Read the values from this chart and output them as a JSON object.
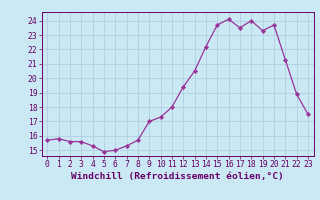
{
  "x": [
    0,
    1,
    2,
    3,
    4,
    5,
    6,
    7,
    8,
    9,
    10,
    11,
    12,
    13,
    14,
    15,
    16,
    17,
    18,
    19,
    20,
    21,
    22,
    23
  ],
  "y": [
    15.7,
    15.8,
    15.6,
    15.6,
    15.3,
    14.9,
    15.0,
    15.3,
    15.7,
    17.0,
    17.3,
    18.0,
    19.4,
    20.5,
    22.2,
    23.7,
    24.1,
    23.5,
    24.0,
    23.3,
    23.7,
    21.3,
    18.9,
    17.5
  ],
  "line_color": "#993399",
  "marker": "D",
  "marker_size": 2.2,
  "bg_color": "#cbe9f5",
  "grid_color": "#b0cfe0",
  "ylabel_ticks": [
    15,
    16,
    17,
    18,
    19,
    20,
    21,
    22,
    23,
    24
  ],
  "ylim": [
    14.6,
    24.6
  ],
  "xlim": [
    -0.5,
    23.5
  ],
  "xlabel": "Windchill (Refroidissement éolien,°C)",
  "tick_color": "#660066",
  "tick_labelsize": 5.8,
  "xlabel_fontsize": 6.8
}
